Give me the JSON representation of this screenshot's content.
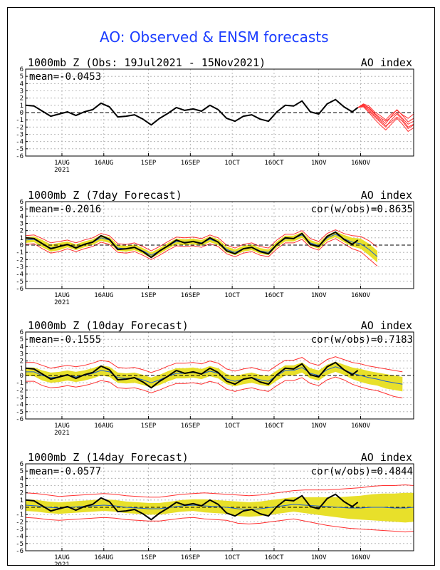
{
  "page": {
    "title": "AO: Observed & ENSM forecasts"
  },
  "x_axis": {
    "ticks": [
      "1AUG",
      "16AUG",
      "1SEP",
      "16SEP",
      "1OCT",
      "16OCT",
      "1NOV",
      "16NOV"
    ],
    "tick_days": [
      13,
      28,
      44,
      59,
      74,
      89,
      105,
      120
    ],
    "year_label": "2021",
    "range_days": [
      0,
      139
    ]
  },
  "colors": {
    "observed": "#000000",
    "ensemble": "#ff3030",
    "spread": "#e8e02a",
    "mean_forecast": "#1e5fd0",
    "zero_line": "#000000",
    "grid": "#aaaaaa",
    "title": "#1a3cff"
  },
  "chart_data": [
    {
      "type": "line",
      "title": "1000mb Z (Obs: 19Jul2021 - 15Nov2021)",
      "right_label": "AO index",
      "stat_label": "mean=-0.0453",
      "cor_label": "",
      "ylim": [
        -6,
        6
      ],
      "y_ticks": [
        -6,
        -5,
        -4,
        -3,
        -2,
        -1,
        0,
        1,
        2,
        3,
        4,
        5,
        6
      ],
      "grid": true,
      "observed": {
        "x": [
          0,
          3,
          6,
          9,
          12,
          15,
          18,
          21,
          24,
          27,
          30,
          33,
          36,
          39,
          42,
          45,
          48,
          51,
          54,
          57,
          60,
          63,
          66,
          69,
          72,
          75,
          78,
          81,
          84,
          87,
          90,
          93,
          96,
          99,
          102,
          105,
          108,
          111,
          114,
          117,
          119
        ],
        "y": [
          1.0,
          0.9,
          0.2,
          -0.5,
          -0.2,
          0.1,
          -0.4,
          0.1,
          0.4,
          1.3,
          0.8,
          -0.6,
          -0.5,
          -0.3,
          -0.9,
          -1.7,
          -0.8,
          -0.1,
          0.7,
          0.3,
          0.5,
          0.2,
          1.0,
          0.4,
          -0.8,
          -1.2,
          -0.5,
          -0.3,
          -0.9,
          -1.2,
          0.1,
          1.0,
          0.9,
          1.6,
          0.1,
          -0.2,
          1.2,
          1.8,
          0.8,
          0.1,
          0.7
        ]
      },
      "ensemble": {
        "x": [
          119,
          121,
          123,
          125,
          127,
          129,
          131,
          133,
          135,
          137,
          139
        ],
        "members": [
          [
            0.7,
            1.1,
            0.6,
            -0.2,
            -0.9,
            -1.5,
            -0.5,
            0.4,
            -0.4,
            -1.3,
            -0.8
          ],
          [
            0.7,
            0.9,
            0.2,
            -0.6,
            -1.3,
            -2.0,
            -1.0,
            -0.2,
            -1.0,
            -2.0,
            -1.6
          ],
          [
            0.7,
            1.2,
            0.9,
            0.1,
            -0.4,
            -1.0,
            -0.2,
            0.3,
            -0.3,
            -0.8,
            -0.2
          ],
          [
            0.7,
            0.8,
            0.0,
            -0.9,
            -1.7,
            -2.4,
            -1.6,
            -0.8,
            -1.6,
            -2.6,
            -2.1
          ],
          [
            0.7,
            1.0,
            0.4,
            -0.4,
            -1.1,
            -1.8,
            -1.3,
            -0.6,
            -1.2,
            -2.2,
            -1.7
          ],
          [
            0.7,
            1.1,
            0.7,
            -0.1,
            -0.7,
            -1.2,
            -0.6,
            0.0,
            -0.8,
            -1.6,
            -1.2
          ]
        ]
      }
    },
    {
      "type": "area",
      "title": "1000mb Z (7day Forecast)",
      "right_label": "AO index",
      "stat_label": "mean=-0.2016",
      "cor_label": "cor(w/obs)=0.8635",
      "ylim": [
        -6,
        6
      ],
      "y_ticks": [
        -6,
        -5,
        -4,
        -3,
        -2,
        -1,
        0,
        1,
        2,
        3,
        4,
        5,
        6
      ],
      "grid": true,
      "observed": {
        "x": [
          0,
          3,
          6,
          9,
          12,
          15,
          18,
          21,
          24,
          27,
          30,
          33,
          36,
          39,
          42,
          45,
          48,
          51,
          54,
          57,
          60,
          63,
          66,
          69,
          72,
          75,
          78,
          81,
          84,
          87,
          90,
          93,
          96,
          99,
          102,
          105,
          108,
          111,
          114,
          117,
          119
        ],
        "y": [
          1.0,
          0.9,
          0.2,
          -0.5,
          -0.2,
          0.1,
          -0.4,
          0.1,
          0.4,
          1.3,
          0.8,
          -0.6,
          -0.5,
          -0.3,
          -0.9,
          -1.7,
          -0.8,
          -0.1,
          0.7,
          0.3,
          0.5,
          0.2,
          1.0,
          0.4,
          -0.8,
          -1.2,
          -0.5,
          -0.3,
          -0.9,
          -1.2,
          0.1,
          1.0,
          0.9,
          1.6,
          0.1,
          -0.2,
          1.2,
          1.8,
          0.8,
          0.1,
          0.7
        ]
      },
      "forecast_x": [
        0,
        3,
        6,
        9,
        12,
        15,
        18,
        21,
        24,
        27,
        30,
        33,
        36,
        39,
        42,
        45,
        48,
        51,
        54,
        57,
        60,
        63,
        66,
        69,
        72,
        75,
        78,
        81,
        84,
        87,
        90,
        93,
        96,
        99,
        102,
        105,
        108,
        111,
        114,
        117,
        120,
        123,
        126
      ],
      "mean_forecast": [
        0.7,
        0.8,
        0.2,
        -0.4,
        -0.2,
        0.1,
        -0.3,
        0.1,
        0.4,
        1.0,
        0.7,
        -0.4,
        -0.5,
        -0.3,
        -0.8,
        -1.4,
        -0.8,
        -0.1,
        0.5,
        0.4,
        0.5,
        0.3,
        0.8,
        0.4,
        -0.6,
        -1.0,
        -0.5,
        -0.3,
        -0.8,
        -1.0,
        0.1,
        0.9,
        0.9,
        1.4,
        0.3,
        -0.1,
        1.0,
        1.5,
        0.9,
        0.4,
        0.2,
        -0.6,
        -1.6
      ],
      "spread_upper": [
        1.1,
        1.2,
        0.7,
        0.1,
        0.3,
        0.5,
        0.1,
        0.5,
        0.8,
        1.4,
        1.1,
        0.0,
        -0.1,
        0.1,
        -0.4,
        -1.0,
        -0.4,
        0.3,
        0.9,
        0.8,
        0.9,
        0.7,
        1.2,
        0.8,
        -0.2,
        -0.6,
        -0.1,
        0.1,
        -0.4,
        -0.6,
        0.5,
        1.3,
        1.3,
        1.8,
        0.7,
        0.3,
        1.4,
        1.9,
        1.4,
        1.0,
        0.9,
        0.2,
        -0.8
      ],
      "spread_lower": [
        0.3,
        0.4,
        -0.3,
        -0.9,
        -0.7,
        -0.3,
        -0.7,
        -0.3,
        0.0,
        0.6,
        0.3,
        -0.8,
        -0.9,
        -0.7,
        -1.2,
        -1.8,
        -1.2,
        -0.5,
        0.1,
        0.0,
        0.1,
        -0.1,
        0.4,
        0.0,
        -1.0,
        -1.4,
        -0.9,
        -0.7,
        -1.2,
        -1.4,
        -0.3,
        0.5,
        0.5,
        1.0,
        -0.1,
        -0.5,
        0.6,
        1.1,
        0.4,
        -0.2,
        -0.5,
        -1.4,
        -2.4
      ],
      "red_upper": [
        1.3,
        1.4,
        0.9,
        0.3,
        0.5,
        0.7,
        0.3,
        0.7,
        1.0,
        1.6,
        1.3,
        0.2,
        0.1,
        0.3,
        -0.2,
        -0.8,
        -0.2,
        0.5,
        1.1,
        1.0,
        1.1,
        0.9,
        1.4,
        1.0,
        0.0,
        -0.4,
        0.1,
        0.3,
        -0.2,
        -0.4,
        0.7,
        1.5,
        1.5,
        2.0,
        0.9,
        0.5,
        1.6,
        2.1,
        1.6,
        1.3,
        1.2,
        0.6,
        -0.3
      ],
      "red_lower": [
        0.1,
        0.2,
        -0.5,
        -1.1,
        -0.9,
        -0.5,
        -0.9,
        -0.5,
        -0.2,
        0.4,
        0.1,
        -1.0,
        -1.1,
        -0.9,
        -1.4,
        -2.0,
        -1.4,
        -0.7,
        -0.1,
        -0.2,
        -0.1,
        -0.3,
        0.2,
        -0.2,
        -1.2,
        -1.6,
        -1.1,
        -0.9,
        -1.4,
        -1.6,
        -0.5,
        0.3,
        0.3,
        0.8,
        -0.3,
        -0.7,
        0.4,
        0.9,
        0.2,
        -0.5,
        -0.9,
        -1.9,
        -2.9
      ]
    },
    {
      "type": "area",
      "title": "1000mb Z (10day Forecast)",
      "right_label": "AO index",
      "stat_label": "mean=-0.1555",
      "cor_label": "cor(w/obs)=0.7183",
      "ylim": [
        -6,
        6
      ],
      "y_ticks": [
        -6,
        -5,
        -4,
        -3,
        -2,
        -1,
        0,
        1,
        2,
        3,
        4,
        5,
        6
      ],
      "grid": true,
      "observed": {
        "x": [
          0,
          3,
          6,
          9,
          12,
          15,
          18,
          21,
          24,
          27,
          30,
          33,
          36,
          39,
          42,
          45,
          48,
          51,
          54,
          57,
          60,
          63,
          66,
          69,
          72,
          75,
          78,
          81,
          84,
          87,
          90,
          93,
          96,
          99,
          102,
          105,
          108,
          111,
          114,
          117,
          119
        ],
        "y": [
          1.0,
          0.9,
          0.2,
          -0.5,
          -0.2,
          0.1,
          -0.4,
          0.1,
          0.4,
          1.3,
          0.8,
          -0.6,
          -0.5,
          -0.3,
          -0.9,
          -1.7,
          -0.8,
          -0.1,
          0.7,
          0.3,
          0.5,
          0.2,
          1.0,
          0.4,
          -0.8,
          -1.2,
          -0.5,
          -0.3,
          -0.9,
          -1.2,
          0.1,
          1.0,
          0.9,
          1.6,
          0.1,
          -0.2,
          1.2,
          1.8,
          0.8,
          0.1,
          0.7
        ]
      },
      "forecast_x": [
        0,
        3,
        6,
        9,
        12,
        15,
        18,
        21,
        24,
        27,
        30,
        33,
        36,
        39,
        42,
        45,
        48,
        51,
        54,
        57,
        60,
        63,
        66,
        69,
        72,
        75,
        78,
        81,
        84,
        87,
        90,
        93,
        96,
        99,
        102,
        105,
        108,
        111,
        114,
        117,
        120,
        123,
        126,
        129,
        132,
        135
      ],
      "mean_forecast": [
        0.5,
        0.5,
        0.0,
        -0.3,
        -0.2,
        0.0,
        -0.2,
        0.0,
        0.3,
        0.7,
        0.5,
        -0.3,
        -0.4,
        -0.3,
        -0.6,
        -1.0,
        -0.6,
        -0.1,
        0.3,
        0.3,
        0.4,
        0.2,
        0.6,
        0.3,
        -0.5,
        -0.8,
        -0.5,
        -0.3,
        -0.6,
        -0.8,
        0.0,
        0.7,
        0.7,
        1.1,
        0.3,
        0.0,
        0.8,
        1.2,
        0.8,
        0.3,
        0.0,
        -0.3,
        -0.5,
        -0.8,
        -1.0,
        -1.2
      ],
      "spread_upper": [
        1.1,
        1.1,
        0.7,
        0.4,
        0.5,
        0.7,
        0.5,
        0.7,
        1.0,
        1.4,
        1.2,
        0.4,
        0.3,
        0.4,
        0.1,
        -0.3,
        0.1,
        0.6,
        1.0,
        1.0,
        1.1,
        0.9,
        1.3,
        1.0,
        0.2,
        -0.1,
        0.2,
        0.4,
        0.1,
        -0.1,
        0.7,
        1.4,
        1.4,
        1.8,
        1.0,
        0.7,
        1.5,
        1.9,
        1.5,
        1.1,
        0.9,
        0.6,
        0.4,
        0.2,
        0.0,
        -0.2
      ],
      "spread_lower": [
        -0.1,
        -0.1,
        -0.7,
        -1.0,
        -0.9,
        -0.7,
        -0.9,
        -0.7,
        -0.4,
        0.0,
        -0.2,
        -1.0,
        -1.1,
        -1.0,
        -1.3,
        -1.7,
        -1.3,
        -0.8,
        -0.4,
        -0.4,
        -0.3,
        -0.5,
        -0.1,
        -0.4,
        -1.2,
        -1.5,
        -1.2,
        -1.0,
        -1.3,
        -1.5,
        -0.7,
        0.0,
        0.0,
        0.4,
        -0.4,
        -0.7,
        0.1,
        0.5,
        0.1,
        -0.5,
        -0.9,
        -1.2,
        -1.4,
        -1.8,
        -2.0,
        -2.2
      ],
      "red_upper": [
        1.8,
        1.8,
        1.4,
        1.0,
        1.2,
        1.4,
        1.2,
        1.4,
        1.7,
        2.1,
        1.9,
        1.1,
        1.0,
        1.1,
        0.8,
        0.4,
        0.8,
        1.3,
        1.7,
        1.7,
        1.8,
        1.6,
        2.0,
        1.7,
        0.9,
        0.6,
        0.9,
        1.1,
        0.8,
        0.6,
        1.4,
        2.1,
        2.1,
        2.5,
        1.7,
        1.4,
        2.2,
        2.6,
        2.2,
        1.8,
        1.6,
        1.3,
        1.1,
        0.9,
        0.7,
        0.5
      ],
      "red_lower": [
        -0.8,
        -0.8,
        -1.4,
        -1.7,
        -1.6,
        -1.4,
        -1.6,
        -1.4,
        -1.1,
        -0.7,
        -0.9,
        -1.7,
        -1.8,
        -1.7,
        -2.0,
        -2.4,
        -2.0,
        -1.5,
        -1.1,
        -1.1,
        -1.0,
        -1.2,
        -0.8,
        -1.1,
        -1.9,
        -2.2,
        -1.9,
        -1.7,
        -2.0,
        -2.2,
        -1.4,
        -0.7,
        -0.7,
        -0.3,
        -1.1,
        -1.4,
        -0.6,
        -0.2,
        -0.6,
        -1.2,
        -1.6,
        -1.9,
        -2.1,
        -2.5,
        -2.9,
        -3.1
      ]
    },
    {
      "type": "area",
      "title": "1000mb Z (14day Forecast)",
      "right_label": "AO index",
      "stat_label": "mean=-0.0577",
      "cor_label": "cor(w/obs)=0.4844",
      "ylim": [
        -6,
        6
      ],
      "y_ticks": [
        -6,
        -5,
        -4,
        -3,
        -2,
        -1,
        0,
        1,
        2,
        3,
        4,
        5,
        6
      ],
      "grid": true,
      "observed": {
        "x": [
          0,
          3,
          6,
          9,
          12,
          15,
          18,
          21,
          24,
          27,
          30,
          33,
          36,
          39,
          42,
          45,
          48,
          51,
          54,
          57,
          60,
          63,
          66,
          69,
          72,
          75,
          78,
          81,
          84,
          87,
          90,
          93,
          96,
          99,
          102,
          105,
          108,
          111,
          114,
          117,
          119
        ],
        "y": [
          1.0,
          0.9,
          0.2,
          -0.5,
          -0.2,
          0.1,
          -0.4,
          0.1,
          0.4,
          1.3,
          0.8,
          -0.6,
          -0.5,
          -0.3,
          -0.9,
          -1.7,
          -0.8,
          -0.1,
          0.7,
          0.3,
          0.5,
          0.2,
          1.0,
          0.4,
          -0.8,
          -1.2,
          -0.5,
          -0.3,
          -0.9,
          -1.2,
          0.1,
          1.0,
          0.9,
          1.6,
          0.1,
          -0.2,
          1.2,
          1.8,
          0.8,
          0.1,
          0.7
        ]
      },
      "forecast_x": [
        0,
        4,
        8,
        12,
        16,
        20,
        24,
        28,
        32,
        36,
        40,
        44,
        48,
        52,
        56,
        60,
        64,
        68,
        72,
        76,
        80,
        84,
        88,
        92,
        96,
        100,
        104,
        108,
        112,
        116,
        120,
        124,
        128,
        132,
        136,
        139
      ],
      "mean_forecast": [
        0.3,
        0.2,
        0.0,
        -0.1,
        0.0,
        0.1,
        0.2,
        0.3,
        0.2,
        0.0,
        -0.1,
        -0.2,
        -0.2,
        0.0,
        0.2,
        0.3,
        0.2,
        0.1,
        0.0,
        -0.2,
        -0.3,
        -0.2,
        0.0,
        0.2,
        0.4,
        0.3,
        0.2,
        0.1,
        0.0,
        -0.1,
        -0.1,
        0.0,
        0.0,
        -0.1,
        -0.1,
        0.0
      ],
      "spread_upper": [
        1.1,
        1.0,
        0.8,
        0.7,
        0.8,
        0.9,
        1.0,
        1.1,
        1.0,
        0.8,
        0.7,
        0.6,
        0.6,
        0.8,
        1.0,
        1.1,
        1.1,
        1.0,
        0.9,
        0.8,
        0.7,
        0.8,
        1.0,
        1.2,
        1.4,
        1.4,
        1.4,
        1.4,
        1.4,
        1.5,
        1.6,
        1.8,
        1.9,
        1.9,
        2.0,
        2.0
      ],
      "spread_lower": [
        -0.5,
        -0.6,
        -0.8,
        -0.9,
        -0.8,
        -0.7,
        -0.6,
        -0.5,
        -0.6,
        -0.8,
        -0.9,
        -1.0,
        -1.0,
        -0.8,
        -0.6,
        -0.5,
        -0.7,
        -0.8,
        -0.9,
        -1.2,
        -1.3,
        -1.2,
        -1.0,
        -0.8,
        -0.6,
        -0.8,
        -1.0,
        -1.2,
        -1.4,
        -1.6,
        -1.7,
        -1.8,
        -1.9,
        -2.0,
        -2.1,
        -2.0
      ],
      "red_upper": [
        2.0,
        1.9,
        1.7,
        1.5,
        1.6,
        1.7,
        1.8,
        1.9,
        1.8,
        1.6,
        1.5,
        1.4,
        1.4,
        1.6,
        1.8,
        1.9,
        2.0,
        1.9,
        1.8,
        1.7,
        1.6,
        1.7,
        1.9,
        2.1,
        2.3,
        2.4,
        2.4,
        2.4,
        2.5,
        2.6,
        2.7,
        2.9,
        3.0,
        3.0,
        3.1,
        3.0
      ],
      "red_lower": [
        -1.4,
        -1.5,
        -1.7,
        -1.8,
        -1.7,
        -1.6,
        -1.5,
        -1.4,
        -1.5,
        -1.7,
        -1.8,
        -1.9,
        -1.9,
        -1.7,
        -1.5,
        -1.4,
        -1.6,
        -1.7,
        -1.8,
        -2.2,
        -2.3,
        -2.2,
        -2.0,
        -1.8,
        -1.6,
        -1.9,
        -2.2,
        -2.5,
        -2.7,
        -2.9,
        -3.0,
        -3.1,
        -3.2,
        -3.3,
        -3.4,
        -3.3
      ]
    }
  ]
}
